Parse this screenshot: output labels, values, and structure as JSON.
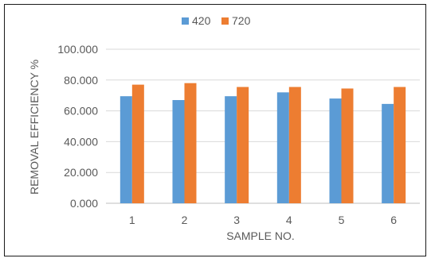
{
  "chart_data": {
    "type": "bar",
    "title": "",
    "xlabel": "SAMPLE NO.",
    "ylabel": "REMOVAL EFFICIENCY %",
    "categories": [
      "1",
      "2",
      "3",
      "4",
      "5",
      "6"
    ],
    "series": [
      {
        "name": "420",
        "color": "#5B9BD5",
        "values": [
          69.5,
          67.0,
          69.5,
          72.0,
          68.0,
          64.5
        ]
      },
      {
        "name": "720",
        "color": "#ED7D31",
        "values": [
          77.0,
          78.0,
          75.5,
          75.5,
          74.5,
          75.5
        ]
      }
    ],
    "ylim": [
      0,
      100
    ],
    "yticks": [
      "0.000",
      "20.000",
      "40.000",
      "60.000",
      "80.000",
      "100.000"
    ],
    "ytick_values": [
      0,
      20,
      40,
      60,
      80,
      100
    ],
    "grid": true,
    "legend_position": "top"
  }
}
